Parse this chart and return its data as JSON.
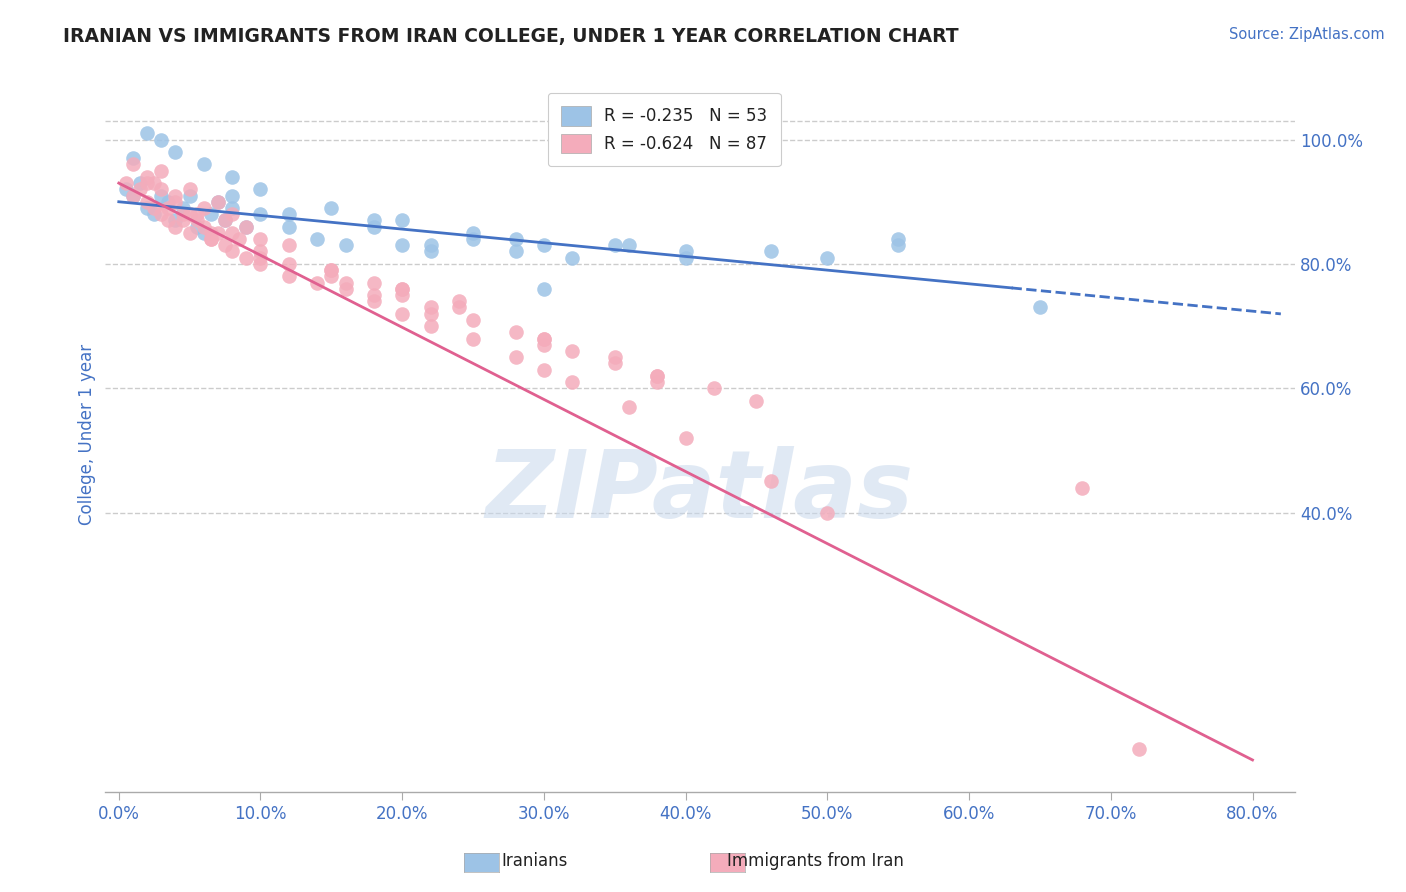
{
  "title": "IRANIAN VS IMMIGRANTS FROM IRAN COLLEGE, UNDER 1 YEAR CORRELATION CHART",
  "source_text": "Source: ZipAtlas.com",
  "xlabel_ticks": [
    "0.0%",
    "10.0%",
    "20.0%",
    "30.0%",
    "40.0%",
    "50.0%",
    "60.0%",
    "70.0%",
    "80.0%"
  ],
  "xlabel_vals": [
    0.0,
    0.1,
    0.2,
    0.3,
    0.4,
    0.5,
    0.6,
    0.7,
    0.8
  ],
  "ylabel": "College, Under 1 year",
  "ylabel_ticks": [
    "40.0%",
    "60.0%",
    "80.0%",
    "100.0%"
  ],
  "ylabel_vals": [
    0.4,
    0.6,
    0.8,
    1.0
  ],
  "xlim": [
    -0.01,
    0.83
  ],
  "ylim": [
    -0.05,
    1.1
  ],
  "iranians_color": "#9DC3E6",
  "immigrants_color": "#F4ACBB",
  "iranians_line_color": "#4472C4",
  "immigrants_line_color": "#E06090",
  "iranians_R": -0.235,
  "iranians_N": 53,
  "immigrants_R": -0.624,
  "immigrants_N": 87,
  "legend_label_iranians": "Iranians",
  "legend_label_immigrants": "Immigrants from Iran",
  "watermark": "ZIPatlas",
  "watermark_color": "#C8D8EC",
  "title_color": "#222222",
  "tick_color": "#4472C4",
  "grid_color": "#CCCCCC",
  "iranians_slope": -0.22,
  "iranians_intercept": 0.9,
  "immigrants_slope": -1.16,
  "immigrants_intercept": 0.93,
  "iranians_x": [
    0.005,
    0.01,
    0.015,
    0.02,
    0.025,
    0.03,
    0.035,
    0.04,
    0.045,
    0.05,
    0.055,
    0.06,
    0.065,
    0.07,
    0.075,
    0.08,
    0.09,
    0.1,
    0.12,
    0.14,
    0.16,
    0.18,
    0.2,
    0.22,
    0.25,
    0.28,
    0.3,
    0.32,
    0.36,
    0.4,
    0.46,
    0.5,
    0.55,
    0.65,
    0.3,
    0.25,
    0.2,
    0.15,
    0.1,
    0.08,
    0.06,
    0.04,
    0.03,
    0.02,
    0.01,
    0.55,
    0.4,
    0.35,
    0.28,
    0.22,
    0.18,
    0.12,
    0.08
  ],
  "iranians_y": [
    0.92,
    0.91,
    0.93,
    0.89,
    0.88,
    0.91,
    0.9,
    0.87,
    0.89,
    0.91,
    0.86,
    0.85,
    0.88,
    0.9,
    0.87,
    0.89,
    0.86,
    0.88,
    0.86,
    0.84,
    0.83,
    0.86,
    0.83,
    0.82,
    0.84,
    0.82,
    0.83,
    0.81,
    0.83,
    0.81,
    0.82,
    0.81,
    0.83,
    0.73,
    0.76,
    0.85,
    0.87,
    0.89,
    0.92,
    0.94,
    0.96,
    0.98,
    1.0,
    1.01,
    0.97,
    0.84,
    0.82,
    0.83,
    0.84,
    0.83,
    0.87,
    0.88,
    0.91
  ],
  "immigrants_x": [
    0.005,
    0.01,
    0.015,
    0.02,
    0.025,
    0.03,
    0.035,
    0.04,
    0.045,
    0.05,
    0.055,
    0.06,
    0.065,
    0.07,
    0.075,
    0.08,
    0.09,
    0.1,
    0.12,
    0.14,
    0.16,
    0.18,
    0.2,
    0.22,
    0.25,
    0.28,
    0.3,
    0.32,
    0.36,
    0.4,
    0.46,
    0.5,
    0.01,
    0.02,
    0.03,
    0.04,
    0.05,
    0.06,
    0.07,
    0.08,
    0.09,
    0.1,
    0.12,
    0.15,
    0.18,
    0.2,
    0.22,
    0.025,
    0.035,
    0.055,
    0.065,
    0.075,
    0.085,
    0.25,
    0.3,
    0.2,
    0.28,
    0.35,
    0.38,
    0.24,
    0.15,
    0.1,
    0.08,
    0.12,
    0.18,
    0.22,
    0.3,
    0.38,
    0.45,
    0.24,
    0.16,
    0.32,
    0.42,
    0.38,
    0.35,
    0.3,
    0.2,
    0.15,
    0.1,
    0.72,
    0.68,
    0.05,
    0.04,
    0.03,
    0.02,
    0.065,
    0.045
  ],
  "immigrants_y": [
    0.93,
    0.91,
    0.92,
    0.9,
    0.89,
    0.88,
    0.87,
    0.86,
    0.88,
    0.85,
    0.87,
    0.86,
    0.84,
    0.85,
    0.83,
    0.82,
    0.81,
    0.8,
    0.78,
    0.77,
    0.76,
    0.74,
    0.72,
    0.7,
    0.68,
    0.65,
    0.63,
    0.61,
    0.57,
    0.52,
    0.45,
    0.4,
    0.96,
    0.93,
    0.95,
    0.91,
    0.92,
    0.89,
    0.9,
    0.88,
    0.86,
    0.84,
    0.83,
    0.79,
    0.77,
    0.75,
    0.73,
    0.93,
    0.89,
    0.88,
    0.85,
    0.87,
    0.84,
    0.71,
    0.68,
    0.76,
    0.69,
    0.65,
    0.62,
    0.73,
    0.78,
    0.81,
    0.85,
    0.8,
    0.75,
    0.72,
    0.67,
    0.61,
    0.58,
    0.74,
    0.77,
    0.66,
    0.6,
    0.62,
    0.64,
    0.68,
    0.76,
    0.79,
    0.82,
    0.02,
    0.44,
    0.88,
    0.9,
    0.92,
    0.94,
    0.84,
    0.87
  ]
}
